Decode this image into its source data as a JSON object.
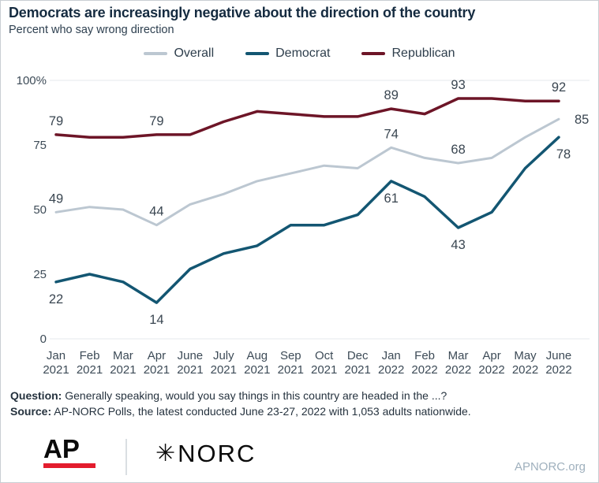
{
  "header": {
    "title": "Democrats are increasingly negative about the direction of the country",
    "subtitle": "Percent who say wrong direction"
  },
  "legend": {
    "items": [
      {
        "label": "Overall",
        "color": "#bcc7d1"
      },
      {
        "label": "Democrat",
        "color": "#135672"
      },
      {
        "label": "Republican",
        "color": "#6d1527"
      }
    ]
  },
  "chart_data": {
    "type": "line",
    "title": "Democrats are increasingly negative about the direction of the country",
    "subtitle": "Percent who say wrong direction",
    "xlabel": "",
    "ylabel": "",
    "ylim": [
      0,
      100
    ],
    "grid_values": [
      100,
      0
    ],
    "legend_position": "top",
    "yticks": [
      {
        "value": 100,
        "label": "100%"
      },
      {
        "value": 75,
        "label": "75"
      },
      {
        "value": 50,
        "label": "50"
      },
      {
        "value": 25,
        "label": "25"
      },
      {
        "value": 0,
        "label": "0"
      }
    ],
    "categories": [
      "Jan 2021",
      "Feb 2021",
      "Mar 2021",
      "Apr 2021",
      "June 2021",
      "July 2021",
      "Aug 2021",
      "Sep 2021",
      "Oct 2021",
      "Dec 2021",
      "Jan 2022",
      "Feb 2022",
      "Mar 2022",
      "Apr 2022",
      "May 2022",
      "June 2022"
    ],
    "series": [
      {
        "name": "Overall",
        "color": "#bcc7d1",
        "stroke_width": 3,
        "values": [
          49,
          51,
          50,
          44,
          52,
          56,
          61,
          64,
          67,
          66,
          74,
          70,
          68,
          70,
          78,
          85
        ],
        "point_labels": [
          {
            "index": 0,
            "position": "above"
          },
          {
            "index": 3,
            "position": "above"
          },
          {
            "index": 10,
            "position": "above"
          },
          {
            "index": 12,
            "position": "above"
          },
          {
            "index": 15,
            "position": "right"
          }
        ]
      },
      {
        "name": "Democrat",
        "color": "#135672",
        "stroke_width": 3.5,
        "values": [
          22,
          25,
          22,
          14,
          27,
          33,
          36,
          44,
          44,
          48,
          61,
          55,
          43,
          49,
          66,
          78
        ],
        "point_labels": [
          {
            "index": 0,
            "position": "below"
          },
          {
            "index": 3,
            "position": "below"
          },
          {
            "index": 10,
            "position": "below"
          },
          {
            "index": 12,
            "position": "below"
          },
          {
            "index": 15,
            "position": "below-right"
          }
        ]
      },
      {
        "name": "Republican",
        "color": "#6d1527",
        "stroke_width": 3.5,
        "values": [
          79,
          78,
          78,
          79,
          79,
          84,
          88,
          87,
          86,
          86,
          89,
          87,
          93,
          93,
          92,
          92
        ],
        "point_labels": [
          {
            "index": 0,
            "position": "above"
          },
          {
            "index": 3,
            "position": "above"
          },
          {
            "index": 10,
            "position": "above"
          },
          {
            "index": 12,
            "position": "above"
          },
          {
            "index": 15,
            "position": "above"
          }
        ]
      }
    ]
  },
  "footnote": {
    "question_label": "Question:",
    "question_text": "Generally speaking, would you say things in this country are headed in the ...?",
    "source_label": "Source:",
    "source_text": "AP-NORC Polls, the latest conducted June 23-27, 2022 with 1,053 adults nationwide."
  },
  "footer": {
    "ap_logo_text": "AP",
    "ap_underline_color": "#e31c2d",
    "norc_star": "✳",
    "norc_logo_text": "NORC",
    "website": "APNORC.org"
  }
}
